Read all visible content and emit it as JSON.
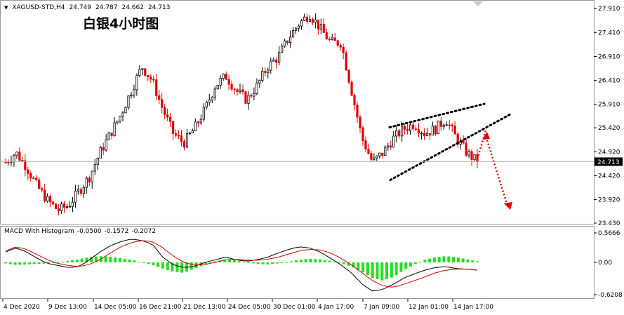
{
  "symbol": "XAGUSD-STD,H4",
  "ohlc": {
    "open": "24.749",
    "high": "24.787",
    "low": "24.662",
    "close": "24.713"
  },
  "title": "白银4小时图",
  "current_price": "24.713",
  "macd": {
    "label": "MACD With Histogram",
    "v1": "-0.0500",
    "v2": "-0.1572",
    "v3": "-0.2072"
  },
  "colors": {
    "bull": "#000000",
    "bear": "#e00000",
    "hist": "#22e022",
    "signal": "#e00000",
    "annotation": "#e00000"
  },
  "chart_data": [
    {
      "type": "candlestick",
      "title": "白银4小时图",
      "ylim": [
        23.43,
        28.03
      ],
      "y_ticks": [
        "27.910",
        "27.410",
        "26.910",
        "26.410",
        "25.910",
        "25.420",
        "24.920",
        "24.420",
        "23.920",
        "23.430"
      ],
      "x_ticks": [
        "4 Dec 2020",
        "9 Dec 13:00",
        "14 Dec 05:00",
        "16 Dec 21:00",
        "21 Dec 13:00",
        "24 Dec 05:00",
        "30 Dec 01:00",
        "4 Jan 17:00",
        "7 Jan 09:00",
        "12 Jan 01:00",
        "14 Jan 17:00"
      ],
      "close_path": [
        24.7,
        24.9,
        24.6,
        24.2,
        23.9,
        23.7,
        23.8,
        24.1,
        24.4,
        24.9,
        25.3,
        25.7,
        26.2,
        26.7,
        26.4,
        25.8,
        25.3,
        25.1,
        25.4,
        25.8,
        26.3,
        26.5,
        26.2,
        26.0,
        26.3,
        26.7,
        26.9,
        27.3,
        27.6,
        27.8,
        27.5,
        27.2,
        27.2,
        26.2,
        25.2,
        24.7,
        24.9,
        25.2,
        25.4,
        25.5,
        25.3,
        25.4,
        25.6,
        25.2,
        24.9,
        24.71
      ],
      "last": 24.713
    },
    {
      "type": "histogram",
      "title": "MACD With Histogram",
      "ylim": [
        -0.6208,
        0.5666
      ],
      "y_ticks": [
        "0.5666",
        "0.00",
        "-0.6208"
      ],
      "values": [
        -0.02,
        -0.05,
        -0.04,
        -0.03,
        -0.02,
        0.0,
        0.03,
        0.06,
        0.1,
        0.12,
        0.11,
        0.08,
        0.05,
        0.0,
        -0.05,
        -0.12,
        -0.18,
        -0.2,
        -0.12,
        -0.05,
        0.02,
        0.06,
        0.04,
        0.0,
        -0.03,
        -0.04,
        -0.02,
        0.01,
        0.05,
        0.07,
        0.06,
        0.03,
        -0.02,
        -0.08,
        -0.18,
        -0.3,
        -0.35,
        -0.28,
        -0.15,
        -0.04,
        0.05,
        0.1,
        0.12,
        0.1,
        0.06,
        0.02
      ],
      "series": [
        {
          "values": [
            0.2,
            0.28,
            0.2,
            0.08,
            -0.02,
            -0.06,
            -0.1,
            -0.08,
            0.05,
            0.2,
            0.32,
            0.4,
            0.45,
            0.42,
            0.35,
            0.1,
            -0.05,
            -0.1,
            -0.08,
            0.0,
            0.05,
            0.1,
            0.05,
            0.02,
            0.05,
            0.1,
            0.18,
            0.25,
            0.3,
            0.28,
            0.2,
            0.08,
            -0.05,
            -0.2,
            -0.42,
            -0.55,
            -0.52,
            -0.42,
            -0.3,
            -0.22,
            -0.15,
            -0.1,
            -0.08,
            -0.12,
            -0.13,
            -0.15
          ]
        },
        {
          "values": [
            0.22,
            0.3,
            0.25,
            0.15,
            0.05,
            -0.02,
            -0.06,
            -0.08,
            -0.04,
            0.05,
            0.18,
            0.3,
            0.38,
            0.42,
            0.4,
            0.28,
            0.12,
            0.0,
            -0.05,
            -0.04,
            0.0,
            0.05,
            0.06,
            0.04,
            0.04,
            0.06,
            0.1,
            0.16,
            0.22,
            0.25,
            0.24,
            0.18,
            0.08,
            -0.05,
            -0.2,
            -0.35,
            -0.45,
            -0.48,
            -0.42,
            -0.35,
            -0.28,
            -0.2,
            -0.15,
            -0.13,
            -0.13,
            -0.15
          ]
        }
      ]
    }
  ]
}
